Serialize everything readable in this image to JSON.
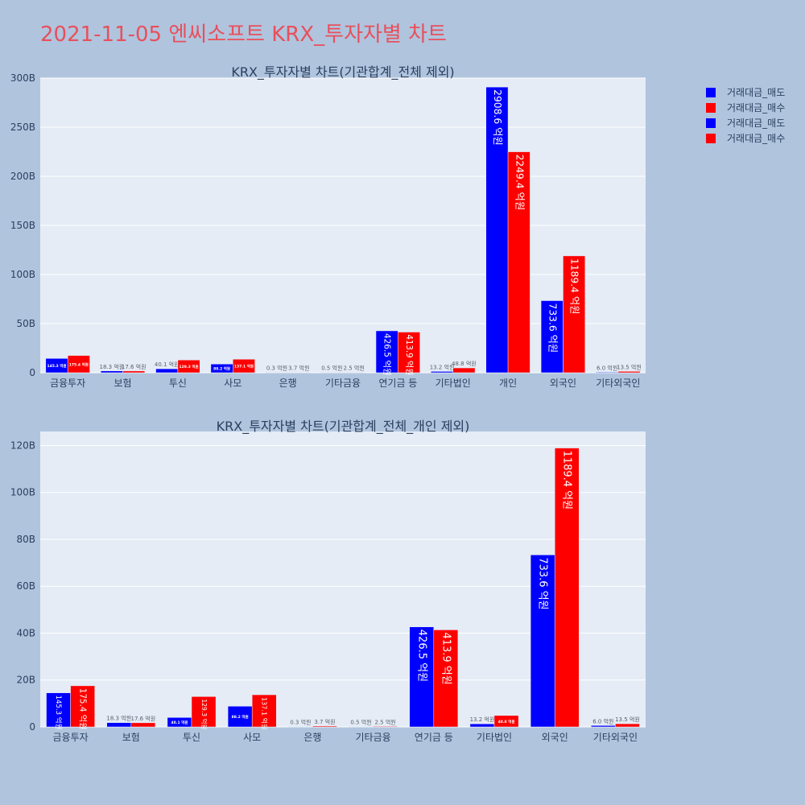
{
  "page": {
    "title": "2021-11-05 엔씨소프트 KRX_투자자별 차트"
  },
  "legend": [
    {
      "label": "거래대금_매도",
      "color": "#0000ff"
    },
    {
      "label": "거래대금_매수",
      "color": "#ff0000"
    },
    {
      "label": "거래대금_매도",
      "color": "#0000ff"
    },
    {
      "label": "거래대금_매수",
      "color": "#ff0000"
    }
  ],
  "chart_data": [
    {
      "type": "bar",
      "title": "KRX_투자자별 차트(기관합계_전체 제외)",
      "categories": [
        "금융투자",
        "보험",
        "투신",
        "사모",
        "은행",
        "기타금융",
        "연기금 등",
        "기타법인",
        "개인",
        "외국인",
        "기타외국인"
      ],
      "ylim": [
        0,
        300
      ],
      "yticks": [
        0,
        50,
        100,
        150,
        200,
        250,
        300
      ],
      "ytick_labels": [
        "0",
        "50B",
        "100B",
        "150B",
        "200B",
        "250B",
        "300B"
      ],
      "series": [
        {
          "name": "거래대금_매도",
          "color": "#0000ff",
          "values": [
            14.53,
            1.83,
            4.01,
            8.82,
            0.03,
            0.05,
            42.65,
            1.32,
            290.86,
            73.36,
            0.6
          ],
          "labels": [
            "145.3 억원",
            "18.3 억원",
            "40.1 억원",
            "88.2 억원",
            "0.3 억원",
            "0.5 억원",
            "426.5 억원",
            "13.2 억원",
            "2908.6 억원",
            "733.6 억원",
            "6.0 억원"
          ]
        },
        {
          "name": "거래대금_매수",
          "color": "#ff0000",
          "values": [
            17.54,
            1.76,
            12.93,
            13.71,
            0.37,
            0.25,
            41.39,
            4.88,
            224.94,
            118.94,
            1.35
          ],
          "labels": [
            "175.4 억원",
            "17.6 억원",
            "129.3 억원",
            "137.1 억원",
            "3.7 억원",
            "2.5 억원",
            "413.9 억원",
            "48.8 억원",
            "2249.4 억원",
            "1189.4 억원",
            "13.5 억원"
          ]
        }
      ]
    },
    {
      "type": "bar",
      "title": "KRX_투자자별 차트(기관합계_전체_개인 제외)",
      "categories": [
        "금융투자",
        "보험",
        "투신",
        "사모",
        "은행",
        "기타금융",
        "연기금 등",
        "기타법인",
        "외국인",
        "기타외국인"
      ],
      "ylim": [
        0,
        126
      ],
      "yticks": [
        0,
        20,
        40,
        60,
        80,
        100,
        120
      ],
      "ytick_labels": [
        "0",
        "20B",
        "40B",
        "60B",
        "80B",
        "100B",
        "120B"
      ],
      "series": [
        {
          "name": "거래대금_매도",
          "color": "#0000ff",
          "values": [
            14.53,
            1.83,
            4.01,
            8.82,
            0.03,
            0.05,
            42.65,
            1.32,
            73.36,
            0.6
          ],
          "labels": [
            "145.3 억원",
            "18.3 억원",
            "40.1 억원",
            "88.2 억원",
            "0.3 억원",
            "0.5 억원",
            "426.5 억원",
            "13.2 억원",
            "733.6 억원",
            "6.0 억원"
          ]
        },
        {
          "name": "거래대금_매수",
          "color": "#ff0000",
          "values": [
            17.54,
            1.76,
            12.93,
            13.71,
            0.37,
            0.25,
            41.39,
            4.88,
            118.94,
            1.35
          ],
          "labels": [
            "175.4 억원",
            "17.6 억원",
            "129.3 억원",
            "137.1 억원",
            "3.7 억원",
            "2.5 억원",
            "413.9 억원",
            "48.8 억원",
            "1189.4 억원",
            "13.5 억원"
          ]
        }
      ]
    }
  ]
}
